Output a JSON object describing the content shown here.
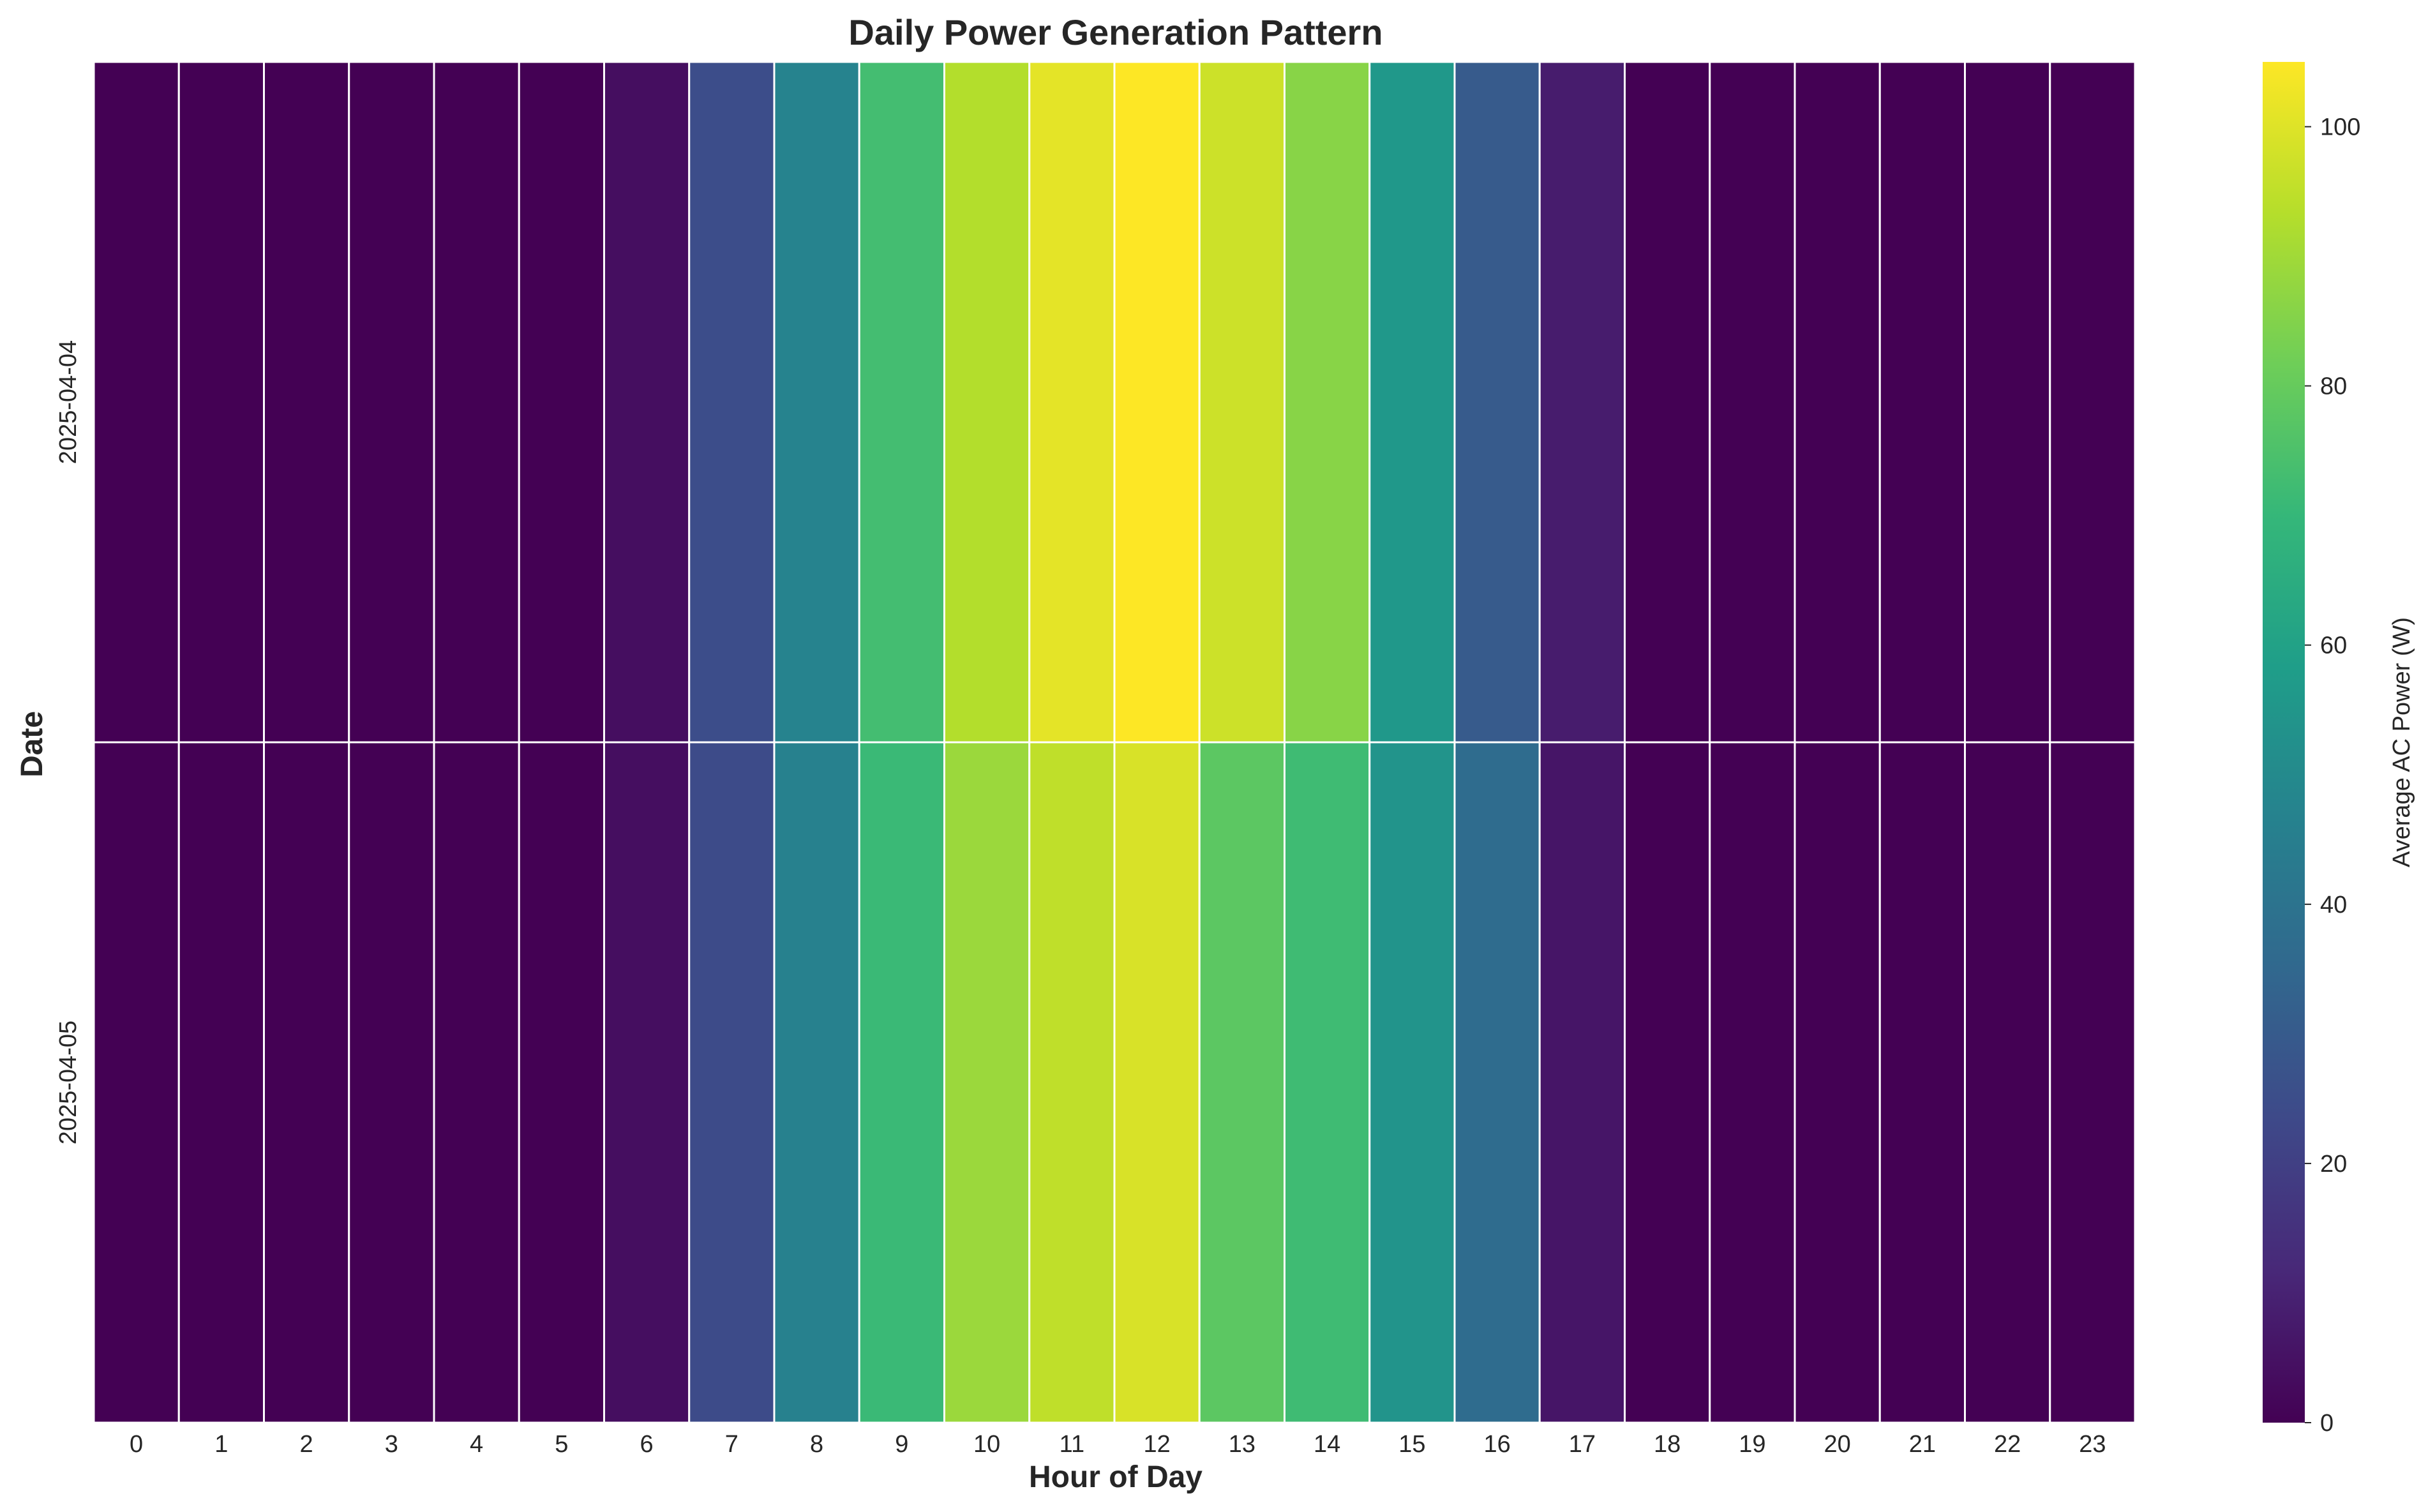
{
  "chart_data": {
    "type": "heatmap",
    "title": "Daily Power Generation Pattern",
    "xlabel": "Hour of Day",
    "ylabel": "Date",
    "x_categories": [
      0,
      1,
      2,
      3,
      4,
      5,
      6,
      7,
      8,
      9,
      10,
      11,
      12,
      13,
      14,
      15,
      16,
      17,
      18,
      19,
      20,
      21,
      22,
      23
    ],
    "y_categories": [
      "2025-04-04",
      "2025-04-05"
    ],
    "values": [
      [
        0,
        0,
        0,
        0,
        0,
        0,
        4,
        25,
        47,
        73,
        93,
        101,
        105,
        97,
        86,
        56,
        30,
        8,
        0,
        0,
        0,
        0,
        0,
        0
      ],
      [
        0,
        0,
        0,
        0,
        0,
        0,
        4,
        24,
        46,
        71,
        89,
        95,
        99,
        78,
        72,
        54,
        37,
        6,
        0,
        0,
        0,
        0,
        0,
        0
      ]
    ],
    "colormap": "viridis",
    "vmin": 0,
    "vmax": 105,
    "colorbar": {
      "label": "Average AC Power (W)",
      "ticks": [
        0,
        20,
        40,
        60,
        80,
        100
      ]
    },
    "grid": false,
    "cell_border_color": "#ffffff"
  }
}
